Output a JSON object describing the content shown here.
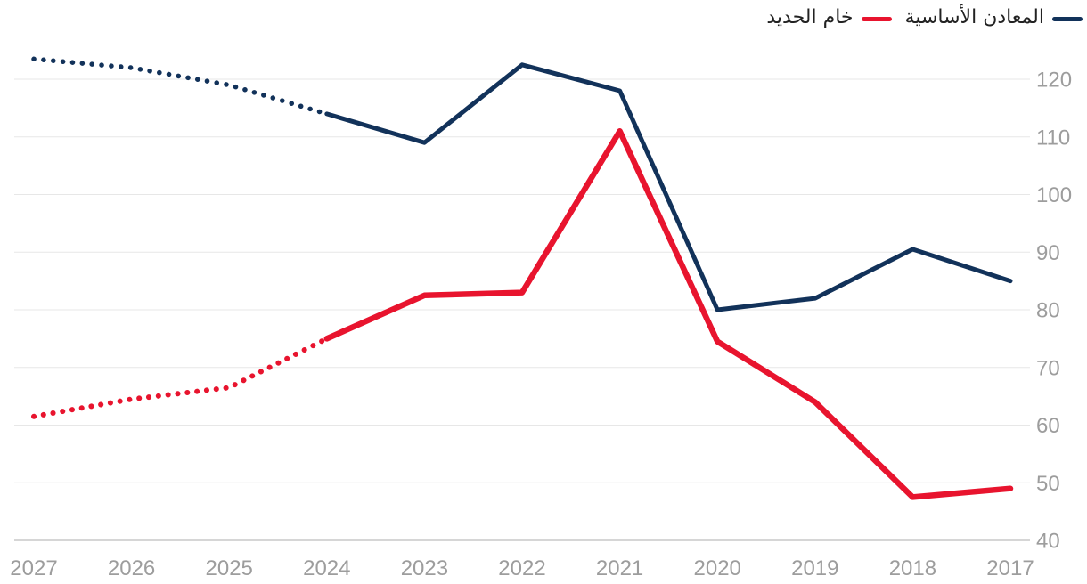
{
  "legend": {
    "items": [
      {
        "id": "iron-ore",
        "label": "خام الحديد",
        "color": "#e8142e"
      },
      {
        "id": "base-metals",
        "label": "المعادن الأساسية",
        "color": "#12325a"
      }
    ]
  },
  "chart_data": {
    "type": "line",
    "title": "",
    "xlabel": "",
    "ylabel": "",
    "categories": [
      "2027",
      "2026",
      "2025",
      "2024",
      "2023",
      "2022",
      "2021",
      "2020",
      "2019",
      "2018",
      "2017"
    ],
    "x_axis_note": "x axis is reversed (RTL chart): 2027 at far left, 2017 at far right",
    "series": [
      {
        "id": "base-metals",
        "name": "المعادن الأساسية",
        "color": "#12325a",
        "values": [
          123.5,
          122,
          119,
          114,
          109,
          122.5,
          118,
          80,
          82,
          90.5,
          85
        ]
      },
      {
        "id": "iron-ore",
        "name": "خام الحديد",
        "color": "#e8142e",
        "values": [
          61.5,
          64.5,
          66.5,
          75,
          82.5,
          83,
          111,
          74.5,
          64,
          47.5,
          49
        ]
      }
    ],
    "forecast_split_index": 3,
    "forecast_note": "segments from 2027 through 2024 are dotted (forecast); 2024 through 2017 are solid",
    "yticks": [
      40,
      50,
      60,
      70,
      80,
      90,
      100,
      110,
      120
    ],
    "ylim": [
      40,
      126
    ],
    "grid": true,
    "y_axis_position": "right",
    "legend_position": "top-right"
  },
  "styles": {
    "grid_color": "#e7e7e7",
    "axis_line_color": "#c9c9c9",
    "tick_label_color": "#9d9d9d",
    "legend_text_color": "#222222",
    "background": "#ffffff"
  }
}
